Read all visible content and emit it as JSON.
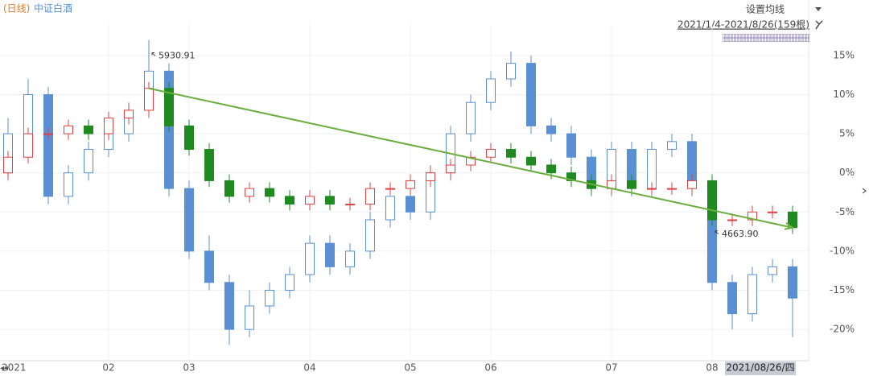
{
  "chart_data": {
    "type": "candlestick",
    "period_label": "(日线)",
    "ma_setting": "设置均线",
    "range_label": "2021/1/4-2021/8/26(159根)",
    "categories": [
      "2021",
      null,
      null,
      null,
      null,
      "02",
      null,
      null,
      null,
      "03",
      null,
      null,
      null,
      null,
      null,
      "04",
      null,
      null,
      null,
      null,
      "05",
      null,
      null,
      null,
      "06",
      null,
      null,
      null,
      null,
      null,
      "07",
      null,
      null,
      null,
      null,
      "08",
      null,
      null,
      null,
      "2021/08/26/四"
    ],
    "series": [
      {
        "name": "中证白酒",
        "color": "#5b8fd4",
        "open": [
          0,
          5,
          10,
          -3,
          0,
          3,
          5,
          8,
          13,
          -2,
          -10,
          -14,
          -20,
          -17,
          -15,
          -13,
          -9,
          -12,
          -10,
          -6,
          -3,
          -5,
          0,
          5,
          9,
          12,
          14,
          6,
          5,
          2,
          -2,
          3,
          -2,
          3,
          4,
          -2,
          -14,
          -18,
          -13,
          -12
        ],
        "high": [
          7,
          12,
          11,
          1,
          4,
          6,
          9,
          17,
          14,
          -1,
          -8,
          -13,
          -15,
          -14,
          -12,
          -8,
          -8,
          -9,
          -5,
          -2,
          -2,
          1,
          6,
          10,
          13,
          15.5,
          15,
          7,
          6,
          3,
          4,
          4,
          4,
          5,
          5,
          -1,
          -13,
          -12,
          -11,
          -11
        ],
        "low": [
          -1,
          4,
          -4,
          -4,
          -1,
          2,
          4,
          7,
          -3,
          -11,
          -15,
          -22,
          -21,
          -18,
          -16,
          -14,
          -13,
          -13,
          -11,
          -7,
          -6,
          -6,
          -1,
          4,
          8,
          11,
          5,
          4,
          1,
          -3,
          -3,
          -3,
          -3,
          2,
          -3,
          -15,
          -20,
          -19,
          -14,
          -21
        ],
        "close": [
          5,
          10,
          -3,
          0,
          3,
          5,
          8,
          13,
          -2,
          -10,
          -14,
          -20,
          -17,
          -15,
          -13,
          -9,
          -12,
          -10,
          -6,
          -3,
          -5,
          0,
          5,
          9,
          12,
          14,
          6,
          5,
          2,
          -2,
          3,
          -2,
          3,
          4,
          -2,
          -14,
          -18,
          -13,
          -12,
          -16
        ]
      },
      {
        "color": "#e0403f",
        "down_color": "#1f8a1f",
        "open": [
          0,
          2,
          5,
          5,
          6,
          5,
          7,
          8,
          10.8,
          6,
          3,
          -1,
          -3,
          -2,
          -3,
          -4,
          -3,
          -4,
          -4,
          -2,
          -2,
          -1,
          0,
          1,
          2,
          3,
          2,
          1,
          0,
          -1,
          -2,
          -1,
          -2,
          -2,
          -2,
          -1,
          -6,
          -6,
          -5,
          -5
        ],
        "high": [
          2.8,
          5.8,
          5.8,
          6.8,
          6.8,
          7.8,
          8.8,
          11.6,
          11.6,
          6.8,
          3.8,
          -0.2,
          -1.2,
          -1.2,
          -2.2,
          -2.2,
          -2.2,
          -3.2,
          -1.2,
          -1.2,
          -0.2,
          0.8,
          1.8,
          2.8,
          3.8,
          3.8,
          2.8,
          1.8,
          0.8,
          -0.2,
          -0.2,
          -0.2,
          -1.2,
          -1.2,
          -0.2,
          -0.2,
          -5.2,
          -4.2,
          -4.2,
          -4.2
        ],
        "low": [
          -0.8,
          1.2,
          4.2,
          4.2,
          4.2,
          4.2,
          6.2,
          7.2,
          5.2,
          2.2,
          -1.8,
          -3.8,
          -3.8,
          -3.8,
          -4.8,
          -4.8,
          -4.8,
          -4.8,
          -4.8,
          -2.8,
          -2.8,
          -1.8,
          -0.8,
          0.2,
          1.2,
          1.2,
          0.2,
          -0.8,
          -1.8,
          -2.8,
          -2.8,
          -2.8,
          -2.8,
          -2.8,
          -2.8,
          -6.8,
          -6.8,
          -6.8,
          -5.8,
          -7.8
        ],
        "close": [
          2,
          5,
          5,
          6,
          5,
          7,
          8,
          10.8,
          6,
          3,
          -1,
          -3,
          -2,
          -3,
          -4,
          -3,
          -4,
          -4,
          -2,
          -2,
          -1,
          0,
          1,
          2,
          3,
          2,
          1,
          0,
          -1,
          -2,
          -1,
          -2,
          -2,
          -2,
          -1,
          -6,
          -6,
          -5,
          -5,
          -7
        ]
      }
    ],
    "annotations": [
      {
        "label": "5930.91",
        "index": 7
      },
      {
        "label": "4663.90",
        "index": 35
      }
    ],
    "trend_color": "#6aae3e",
    "ylim": [
      -24,
      19
    ],
    "yticks": [
      {
        "value": 15,
        "label": "15%"
      },
      {
        "value": 10,
        "label": "10%"
      },
      {
        "value": 5,
        "label": "5%"
      },
      {
        "value": 0,
        "label": "0%"
      },
      {
        "value": -5,
        "label": "-5%"
      },
      {
        "value": -10,
        "label": "-10%"
      },
      {
        "value": -15,
        "label": "-15%"
      },
      {
        "value": -20,
        "label": "-20%"
      }
    ],
    "grid": true
  }
}
